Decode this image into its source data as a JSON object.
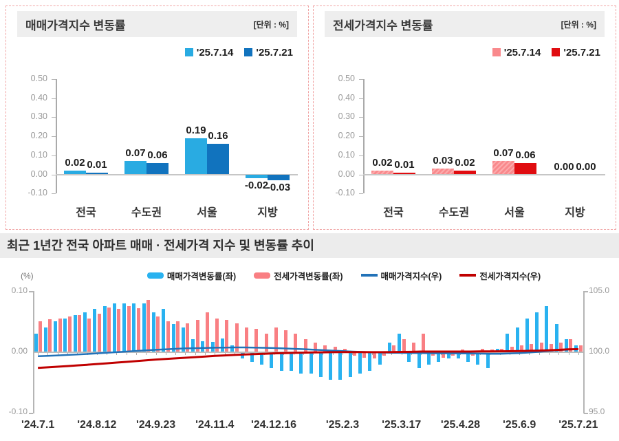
{
  "chart_data": [
    {
      "id": "sale_price_change",
      "type": "bar",
      "title": "매매가격지수 변동률",
      "unit_label": "[단위 : %]",
      "categories": [
        "전국",
        "수도권",
        "서울",
        "지방"
      ],
      "series": [
        {
          "name": "'25.7.14",
          "color": "#29ABE2",
          "values": [
            0.02,
            0.07,
            0.19,
            -0.02
          ]
        },
        {
          "name": "'25.7.21",
          "color": "#1173BE",
          "values": [
            0.01,
            0.06,
            0.16,
            -0.03
          ]
        }
      ],
      "ylim": [
        -0.1,
        0.5
      ],
      "yticks": [
        "0.50",
        "0.40",
        "0.30",
        "0.20",
        "0.10",
        "0.00",
        "-0.10"
      ]
    },
    {
      "id": "jeonse_price_change",
      "type": "bar",
      "title": "전세가격지수 변동률",
      "unit_label": "[단위 : %]",
      "categories": [
        "전국",
        "수도권",
        "서울",
        "지방"
      ],
      "series": [
        {
          "name": "'25.7.14",
          "color": "#F9898C",
          "hatch": true,
          "values": [
            0.02,
            0.03,
            0.07,
            0.0
          ]
        },
        {
          "name": "'25.7.21",
          "color": "#E00C10",
          "values": [
            0.01,
            0.02,
            0.06,
            0.0
          ]
        }
      ],
      "ylim": [
        -0.1,
        0.5
      ],
      "yticks": [
        "0.50",
        "0.40",
        "0.30",
        "0.20",
        "0.10",
        "0.00",
        "-0.10"
      ]
    },
    {
      "id": "one_year_trend",
      "type": "mixed",
      "title": "최근 1년간 전국 아파트 매매 · 전세가격 지수 및 변동률 추이",
      "ylabel_left": "(%)",
      "ylim_left": [
        -0.1,
        0.1
      ],
      "yticks_left": [
        "0.10",
        "0.00",
        "-0.10"
      ],
      "ylim_right": [
        95.0,
        105.0
      ],
      "yticks_right": [
        "105.0",
        "100.0",
        "95.0"
      ],
      "x_tick_labels": [
        "'24.7.1",
        "'24.8.12",
        "'24.9.23",
        "'24.11.4",
        "'24.12.16",
        "'25.2.3",
        "'25.3.17",
        "'25.4.28",
        "'25.6.9",
        "'25.7.21"
      ],
      "x_tick_indices": [
        0,
        6,
        12,
        18,
        24,
        31,
        37,
        43,
        49,
        55
      ],
      "series": [
        {
          "name": "매매가격변동률(좌)",
          "type": "bar",
          "axis": "left",
          "color": "#29B2F0",
          "values": [
            0.03,
            0.04,
            0.05,
            0.055,
            0.06,
            0.065,
            0.07,
            0.075,
            0.08,
            0.08,
            0.08,
            0.08,
            0.065,
            0.07,
            0.045,
            0.04,
            0.02,
            0.017,
            0.016,
            0.022,
            0.01,
            -0.01,
            -0.015,
            -0.02,
            -0.025,
            -0.03,
            -0.03,
            -0.035,
            -0.035,
            -0.04,
            -0.045,
            -0.045,
            -0.04,
            -0.035,
            -0.03,
            -0.02,
            0.015,
            0.03,
            -0.015,
            -0.025,
            -0.02,
            -0.015,
            -0.01,
            -0.01,
            -0.015,
            -0.02,
            -0.025,
            0.005,
            0.03,
            0.04,
            0.055,
            0.065,
            0.075,
            0.045,
            0.02,
            0.01
          ]
        },
        {
          "name": "전세가격변동률(좌)",
          "type": "bar",
          "axis": "left",
          "color": "#F97F83",
          "values": [
            0.05,
            0.053,
            0.055,
            0.058,
            0.06,
            0.055,
            0.063,
            0.073,
            0.07,
            0.075,
            0.072,
            0.085,
            0.058,
            0.05,
            0.05,
            0.047,
            0.052,
            0.065,
            0.055,
            0.052,
            0.047,
            0.04,
            0.038,
            0.03,
            0.04,
            0.035,
            0.03,
            0.02,
            0.015,
            0.01,
            0.008,
            0.005,
            -0.005,
            -0.008,
            -0.01,
            -0.005,
            0.01,
            0.02,
            0.015,
            0.03,
            -0.005,
            -0.008,
            -0.005,
            0.003,
            -0.005,
            0.005,
            0.003,
            0.005,
            0.008,
            0.01,
            0.012,
            0.015,
            0.012,
            0.015,
            0.02,
            0.01
          ]
        },
        {
          "name": "매매가격지수(우)",
          "type": "line",
          "axis": "right",
          "color": "#2272B8",
          "values": [
            99.62,
            99.65,
            99.68,
            99.72,
            99.76,
            99.8,
            99.85,
            99.9,
            99.95,
            100.0,
            100.05,
            100.1,
            100.15,
            100.19,
            100.23,
            100.26,
            100.28,
            100.3,
            100.32,
            100.33,
            100.34,
            100.34,
            100.33,
            100.31,
            100.29,
            100.26,
            100.23,
            100.2,
            100.16,
            100.12,
            100.08,
            100.04,
            100.0,
            99.97,
            99.94,
            99.92,
            99.9,
            99.89,
            99.88,
            99.87,
            99.86,
            99.85,
            99.85,
            99.84,
            99.84,
            99.83,
            99.82,
            99.82,
            99.84,
            99.87,
            99.92,
            99.98,
            100.05,
            100.12,
            100.17,
            100.2
          ]
        },
        {
          "name": "전세가격지수(우)",
          "type": "line",
          "axis": "right",
          "color": "#C00000",
          "values": [
            98.65,
            98.7,
            98.75,
            98.8,
            98.86,
            98.91,
            98.97,
            99.03,
            99.09,
            99.15,
            99.21,
            99.28,
            99.34,
            99.39,
            99.44,
            99.49,
            99.54,
            99.59,
            99.64,
            99.68,
            99.72,
            99.76,
            99.79,
            99.82,
            99.85,
            99.87,
            99.89,
            99.91,
            99.93,
            99.94,
            99.95,
            99.96,
            99.96,
            99.96,
            99.95,
            99.95,
            99.96,
            99.97,
            99.98,
            100.0,
            100.0,
            100.0,
            100.0,
            100.0,
            100.0,
            100.01,
            100.01,
            100.02,
            100.03,
            100.04,
            100.06,
            100.08,
            100.11,
            100.14,
            100.18,
            100.2
          ]
        }
      ]
    }
  ]
}
